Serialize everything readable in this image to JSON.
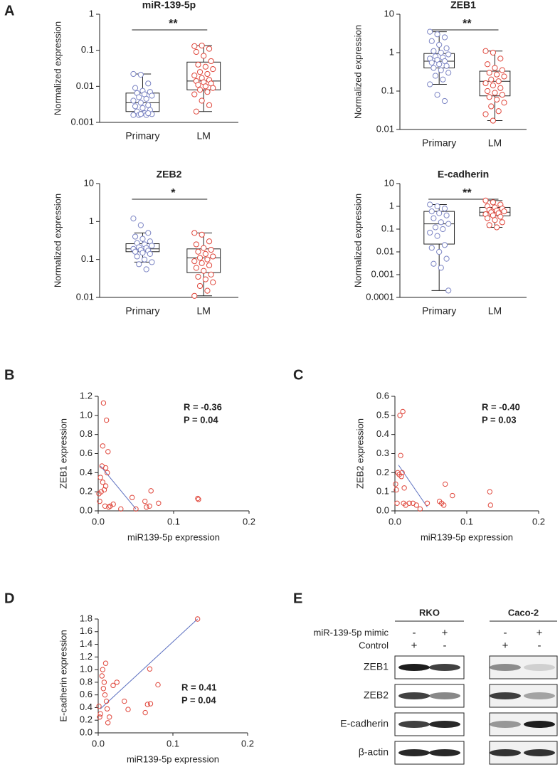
{
  "panels": [
    "A",
    "B",
    "C",
    "D",
    "E"
  ],
  "chart_data": [
    {
      "type": "box",
      "title": "miR-139-5p",
      "ylabel": "Normalized expression",
      "categories": [
        "Primary",
        "LM"
      ],
      "colors": [
        "#7b84c4",
        "#e0473c"
      ],
      "log_scale": true,
      "ylim": [
        0.001,
        1
      ],
      "yticks": [
        0.001,
        0.01,
        0.1,
        1
      ],
      "annotation": "**",
      "boxes": [
        {
          "whislo": 0.0016,
          "q1": 0.002,
          "med": 0.0035,
          "q3": 0.0065,
          "whishi": 0.022,
          "points": [
            0.022,
            0.021,
            0.012,
            0.009,
            0.0075,
            0.007,
            0.0065,
            0.006,
            0.0055,
            0.005,
            0.0045,
            0.004,
            0.0035,
            0.003,
            0.0028,
            0.0025,
            0.0022,
            0.002,
            0.0018,
            0.0017,
            0.0016,
            0.0016,
            0.0016,
            0.0017,
            0.0018
          ]
        },
        {
          "whislo": 0.002,
          "q1": 0.008,
          "med": 0.014,
          "q3": 0.047,
          "whishi": 0.135,
          "points": [
            0.13,
            0.135,
            0.11,
            0.09,
            0.07,
            0.05,
            0.04,
            0.035,
            0.03,
            0.025,
            0.022,
            0.02,
            0.017,
            0.015,
            0.014,
            0.013,
            0.012,
            0.011,
            0.01,
            0.009,
            0.008,
            0.007,
            0.006,
            0.004,
            0.003,
            0.002
          ]
        }
      ]
    },
    {
      "type": "box",
      "title": "ZEB1",
      "ylabel": "Normalized expression",
      "categories": [
        "Primary",
        "LM"
      ],
      "colors": [
        "#7b84c4",
        "#e0473c"
      ],
      "log_scale": true,
      "ylim": [
        0.01,
        10
      ],
      "yticks": [
        0.01,
        0.1,
        1,
        10
      ],
      "annotation": "**",
      "boxes": [
        {
          "whislo": 0.15,
          "q1": 0.4,
          "med": 0.6,
          "q3": 0.95,
          "whishi": 3.5,
          "points": [
            3.5,
            3,
            2.5,
            2,
            1.6,
            1.3,
            1.1,
            1,
            0.9,
            0.8,
            0.75,
            0.7,
            0.65,
            0.6,
            0.55,
            0.5,
            0.45,
            0.4,
            0.35,
            0.3,
            0.25,
            0.2,
            0.15,
            0.08,
            0.055
          ]
        },
        {
          "whislo": 0.017,
          "q1": 0.075,
          "med": 0.18,
          "q3": 0.33,
          "whishi": 1.1,
          "points": [
            1.1,
            1.0,
            0.7,
            0.5,
            0.4,
            0.35,
            0.3,
            0.27,
            0.24,
            0.2,
            0.18,
            0.16,
            0.14,
            0.12,
            0.1,
            0.09,
            0.08,
            0.07,
            0.06,
            0.05,
            0.04,
            0.03,
            0.025,
            0.017
          ]
        }
      ]
    },
    {
      "type": "box",
      "title": "ZEB2",
      "ylabel": "Normalized expression",
      "categories": [
        "Primary",
        "LM"
      ],
      "colors": [
        "#7b84c4",
        "#e0473c"
      ],
      "log_scale": true,
      "ylim": [
        0.01,
        10
      ],
      "yticks": [
        0.01,
        0.1,
        1,
        10
      ],
      "annotation": "*",
      "boxes": [
        {
          "whislo": 0.085,
          "q1": 0.16,
          "med": 0.19,
          "q3": 0.26,
          "whishi": 0.5,
          "points": [
            1.2,
            0.8,
            0.5,
            0.4,
            0.35,
            0.3,
            0.27,
            0.25,
            0.23,
            0.21,
            0.2,
            0.19,
            0.18,
            0.17,
            0.16,
            0.15,
            0.14,
            0.12,
            0.1,
            0.085,
            0.075,
            0.055
          ]
        },
        {
          "whislo": 0.011,
          "q1": 0.045,
          "med": 0.11,
          "q3": 0.19,
          "whishi": 0.5,
          "points": [
            0.5,
            0.45,
            0.3,
            0.25,
            0.2,
            0.18,
            0.16,
            0.14,
            0.12,
            0.11,
            0.1,
            0.09,
            0.08,
            0.07,
            0.06,
            0.05,
            0.04,
            0.035,
            0.03,
            0.025,
            0.02,
            0.015,
            0.011
          ]
        }
      ]
    },
    {
      "type": "box",
      "title": "E-cadherin",
      "ylabel": "Normalized expression",
      "categories": [
        "Primary",
        "LM"
      ],
      "colors": [
        "#7b84c4",
        "#e0473c"
      ],
      "log_scale": true,
      "ylim": [
        0.0001,
        10
      ],
      "yticks": [
        0.0001,
        0.001,
        0.01,
        0.1,
        1,
        10
      ],
      "annotation": "**",
      "boxes": [
        {
          "whislo": 0.0002,
          "q1": 0.022,
          "med": 0.17,
          "q3": 0.6,
          "whishi": 1.2,
          "points": [
            1.2,
            1.0,
            0.8,
            0.6,
            0.5,
            0.4,
            0.3,
            0.2,
            0.17,
            0.12,
            0.1,
            0.07,
            0.05,
            0.02,
            0.015,
            0.01,
            0.005,
            0.003,
            0.002,
            0.0002
          ]
        },
        {
          "whislo": 0.12,
          "q1": 0.38,
          "med": 0.55,
          "q3": 0.9,
          "whishi": 1.8,
          "points": [
            1.8,
            1.5,
            1.2,
            1.0,
            0.9,
            0.8,
            0.7,
            0.65,
            0.6,
            0.55,
            0.5,
            0.45,
            0.4,
            0.35,
            0.3,
            0.25,
            0.2,
            0.15,
            0.12
          ]
        }
      ]
    },
    {
      "type": "scatter",
      "xlabel": "miR139-5p expression",
      "ylabel": "ZEB1 expression",
      "color": "#e0473c",
      "line_color": "#5b6fc0",
      "xlim": [
        0,
        0.2
      ],
      "ylim": [
        0,
        1.2
      ],
      "xticks": [
        {
          "value": 0,
          "label": "0.0"
        },
        0.1,
        0.2
      ],
      "yticks": [
        {
          "value": 0,
          "label": "0.0"
        },
        0.2,
        0.4,
        0.6,
        0.8,
        {
          "value": 1,
          "label": "1.0"
        },
        1.2
      ],
      "annotations": [
        "R = -0.36",
        "P = 0.04"
      ],
      "x": [
        0.001,
        0.002,
        0.003,
        0.004,
        0.005,
        0.006,
        0.006,
        0.007,
        0.008,
        0.009,
        0.01,
        0.011,
        0.012,
        0.013,
        0.01,
        0.014,
        0.016,
        0.02,
        0.03,
        0.045,
        0.05,
        0.062,
        0.064,
        0.068,
        0.07,
        0.08,
        0.132,
        0.133
      ],
      "y": [
        0.18,
        0.1,
        0.35,
        0.2,
        0.47,
        0.68,
        0.3,
        1.13,
        0.22,
        0.05,
        0.45,
        0.95,
        0.4,
        0.62,
        0.26,
        0.04,
        0.05,
        0.07,
        0.02,
        0.14,
        0.02,
        0.1,
        0.04,
        0.05,
        0.21,
        0.08,
        0.13,
        0.12
      ],
      "fit": {
        "x": [
          0.003,
          0.05
        ],
        "y": [
          0.47,
          0.02
        ]
      }
    },
    {
      "type": "scatter",
      "xlabel": "miR139-5p expression",
      "ylabel": "ZEB2 expression",
      "color": "#e0473c",
      "line_color": "#5b6fc0",
      "xlim": [
        0,
        0.2
      ],
      "ylim": [
        0,
        0.6
      ],
      "xticks": [
        {
          "value": 0,
          "label": "0.0"
        },
        0.1,
        0.2
      ],
      "yticks": [
        {
          "value": 0,
          "label": "0.0"
        },
        0.1,
        0.2,
        0.3,
        0.4,
        0.5,
        0.6
      ],
      "annotations": [
        "R = -0.40",
        "P = 0.03"
      ],
      "x": [
        0.001,
        0.002,
        0.003,
        0.004,
        0.006,
        0.007,
        0.008,
        0.009,
        0.01,
        0.011,
        0.012,
        0.013,
        0.015,
        0.02,
        0.025,
        0.03,
        0.035,
        0.045,
        0.062,
        0.065,
        0.07,
        0.068,
        0.08,
        0.132,
        0.133
      ],
      "y": [
        0.14,
        0.11,
        0.04,
        0.2,
        0.19,
        0.5,
        0.29,
        0.18,
        0.2,
        0.52,
        0.04,
        0.12,
        0.03,
        0.04,
        0.04,
        0.03,
        0.01,
        0.04,
        0.05,
        0.04,
        0.14,
        0.03,
        0.08,
        0.1,
        0.03
      ],
      "fit": {
        "x": [
          0.005,
          0.045
        ],
        "y": [
          0.24,
          0.02
        ]
      }
    },
    {
      "type": "scatter",
      "xlabel": "miR139-5p expression",
      "ylabel": "E-cadherin expression",
      "color": "#e0473c",
      "line_color": "#5b6fc0",
      "xlim": [
        0,
        0.2
      ],
      "ylim": [
        0,
        1.8
      ],
      "xticks": [
        {
          "value": 0,
          "label": "0.0"
        },
        0.1,
        0.2
      ],
      "yticks": [
        {
          "value": 0,
          "label": "0.0"
        },
        0.2,
        0.4,
        0.6,
        0.8,
        {
          "value": 1,
          "label": "1.0"
        },
        1.2,
        1.4,
        1.6,
        1.8
      ],
      "annotations": [
        "R = 0.41",
        "P = 0.04"
      ],
      "x": [
        0.001,
        0.002,
        0.003,
        0.005,
        0.006,
        0.007,
        0.008,
        0.009,
        0.01,
        0.011,
        0.012,
        0.013,
        0.015,
        0.02,
        0.025,
        0.035,
        0.04,
        0.063,
        0.066,
        0.069,
        0.07,
        0.08,
        0.133
      ],
      "y": [
        0.42,
        0.25,
        0.3,
        0.9,
        1.0,
        0.7,
        0.8,
        0.6,
        1.1,
        0.5,
        0.38,
        0.16,
        0.25,
        0.75,
        0.8,
        0.5,
        0.37,
        0.32,
        0.45,
        1.01,
        0.46,
        0.76,
        1.8
      ],
      "fit": {
        "x": [
          0.003,
          0.133
        ],
        "y": [
          0.38,
          1.8
        ]
      }
    }
  ],
  "blot": {
    "groups": [
      "RKO",
      "Caco-2"
    ],
    "conditions": [
      "miR-139-5p mimic",
      "Control"
    ],
    "signs": [
      [
        "-",
        "+",
        "-",
        "+"
      ],
      [
        "+",
        "-",
        "+",
        "-"
      ]
    ],
    "bands": [
      "ZEB1",
      "ZEB2",
      "E-cadherin",
      "β-actin"
    ]
  }
}
